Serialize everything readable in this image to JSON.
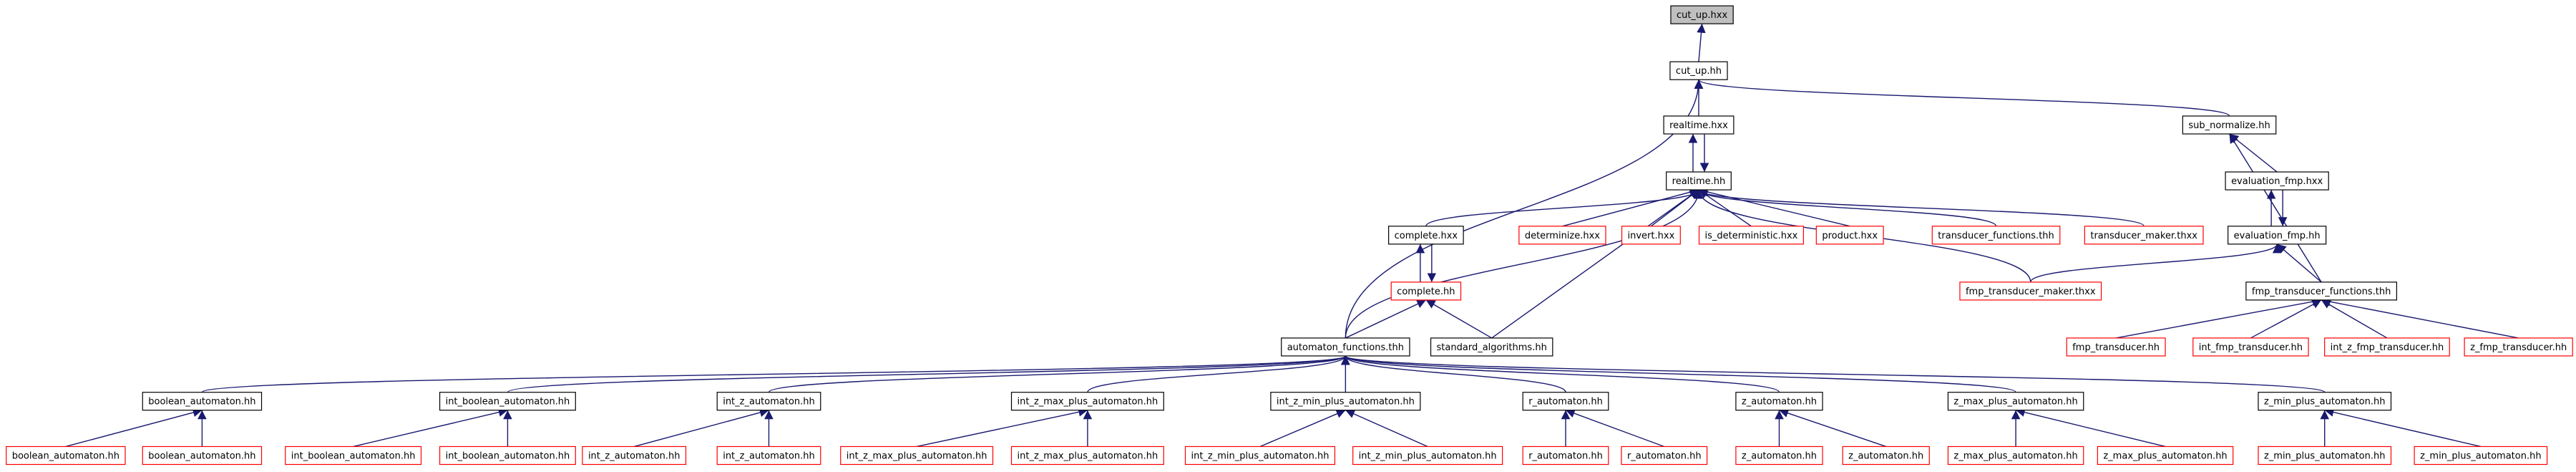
{
  "nodes": [
    {
      "label": "cut_up.hxx"
    },
    {
      "label": "cut_up.hh"
    },
    {
      "label": "realtime.hxx"
    },
    {
      "label": "sub_normalize.hh"
    },
    {
      "label": "realtime.hh"
    },
    {
      "label": "evaluation_fmp.hxx"
    },
    {
      "label": "complete.hxx"
    },
    {
      "label": "determinize.hxx"
    },
    {
      "label": "invert.hxx"
    },
    {
      "label": "is_deterministic.hxx"
    },
    {
      "label": "product.hxx"
    },
    {
      "label": "transducer_functions.thh"
    },
    {
      "label": "transducer_maker.thxx"
    },
    {
      "label": "evaluation_fmp.hh"
    },
    {
      "label": "complete.hh"
    },
    {
      "label": "fmp_transducer_maker.thxx"
    },
    {
      "label": "fmp_transducer_functions.thh"
    },
    {
      "label": "automaton_functions.thh"
    },
    {
      "label": "standard_algorithms.hh"
    },
    {
      "label": "fmp_transducer.hh"
    },
    {
      "label": "int_fmp_transducer.hh"
    },
    {
      "label": "int_z_fmp_transducer.hh"
    },
    {
      "label": "z_fmp_transducer.hh"
    },
    {
      "label": "boolean_automaton.hh"
    },
    {
      "label": "int_boolean_automaton.hh"
    },
    {
      "label": "int_z_automaton.hh"
    },
    {
      "label": "int_z_max_plus_automaton.hh"
    },
    {
      "label": "int_z_min_plus_automaton.hh"
    },
    {
      "label": "r_automaton.hh"
    },
    {
      "label": "z_automaton.hh"
    },
    {
      "label": "z_max_plus_automaton.hh"
    },
    {
      "label": "z_min_plus_automaton.hh"
    },
    {
      "label": "boolean_automaton.hh"
    },
    {
      "label": "boolean_automaton.hh"
    },
    {
      "label": "int_boolean_automaton.hh"
    },
    {
      "label": "int_boolean_automaton.hh"
    },
    {
      "label": "int_z_automaton.hh"
    },
    {
      "label": "int_z_automaton.hh"
    },
    {
      "label": "int_z_max_plus_automaton.hh"
    },
    {
      "label": "int_z_max_plus_automaton.hh"
    },
    {
      "label": "int_z_min_plus_automaton.hh"
    },
    {
      "label": "int_z_min_plus_automaton.hh"
    },
    {
      "label": "r_automaton.hh"
    },
    {
      "label": "r_automaton.hh"
    },
    {
      "label": "z_automaton.hh"
    },
    {
      "label": "z_automaton.hh"
    },
    {
      "label": "z_max_plus_automaton.hh"
    },
    {
      "label": "z_max_plus_automaton.hh"
    },
    {
      "label": "z_min_plus_automaton.hh"
    },
    {
      "label": "z_min_plus_automaton.hh"
    }
  ]
}
